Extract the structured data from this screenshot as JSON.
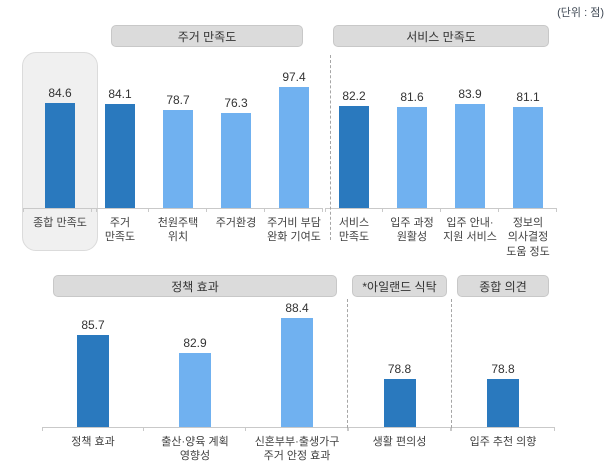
{
  "unit_note": "(단위 : 점)",
  "colors": {
    "dark_bar": "#2a79be",
    "light_bar": "#70b1f0",
    "axis": "#c9c9c9",
    "header_box": "#dbdbdb"
  },
  "chart_data": {
    "type": "bar",
    "unit": "점",
    "unit_note": "(단위 : 점)",
    "value_range_hint": [
      70,
      100
    ],
    "legend": "none",
    "grid": false,
    "rows": [
      {
        "name": "top",
        "groups": [
          {
            "id": "overall",
            "title": null,
            "boxed": true,
            "columns": [
              {
                "value": "84.6",
                "tone": "dark",
                "label_lines": [
                  "종합 만족도"
                ]
              }
            ]
          },
          {
            "id": "housing",
            "title": "주거 만족도",
            "boxed": false,
            "columns": [
              {
                "value": "84.1",
                "tone": "dark",
                "label_lines": [
                  "주거",
                  "만족도"
                ]
              },
              {
                "value": "78.7",
                "tone": "light",
                "label_lines": [
                  "천원주택",
                  "위치"
                ]
              },
              {
                "value": "76.3",
                "tone": "light",
                "label_lines": [
                  "주거환경"
                ]
              },
              {
                "value": "97.4",
                "tone": "light",
                "label_lines": [
                  "주거비 부담",
                  "완화 기여도"
                ]
              }
            ]
          },
          {
            "id": "service",
            "title": "서비스 만족도",
            "boxed": false,
            "columns": [
              {
                "value": "82.2",
                "tone": "dark",
                "label_lines": [
                  "서비스",
                  "만족도"
                ]
              },
              {
                "value": "81.6",
                "tone": "light",
                "label_lines": [
                  "입주 과정",
                  "원활성"
                ]
              },
              {
                "value": "83.9",
                "tone": "light",
                "label_lines": [
                  "입주 안내·",
                  "지원 서비스"
                ]
              },
              {
                "value": "81.1",
                "tone": "light",
                "label_lines": [
                  "정보의",
                  "의사결정",
                  "도움 정도"
                ]
              }
            ]
          }
        ]
      },
      {
        "name": "bottom",
        "groups": [
          {
            "id": "policy",
            "title": "정책 효과",
            "boxed": false,
            "columns": [
              {
                "value": "85.7",
                "tone": "dark",
                "label_lines": [
                  "정책 효과"
                ]
              },
              {
                "value": "82.9",
                "tone": "light",
                "label_lines": [
                  "출산·양육 계획",
                  "영향성"
                ]
              },
              {
                "value": "88.4",
                "tone": "light",
                "label_lines": [
                  "신혼부부·출생가구",
                  "주거 안정 효과"
                ]
              }
            ]
          },
          {
            "id": "island",
            "title": "*아일랜드 식탁",
            "boxed": false,
            "columns": [
              {
                "value": "78.8",
                "tone": "dark",
                "label_lines": [
                  "생활 편의성"
                ]
              }
            ]
          },
          {
            "id": "opinion",
            "title": "종합 의견",
            "boxed": false,
            "columns": [
              {
                "value": "78.8",
                "tone": "dark",
                "label_lines": [
                  "입주 추천 의향"
                ]
              }
            ]
          }
        ]
      }
    ]
  }
}
